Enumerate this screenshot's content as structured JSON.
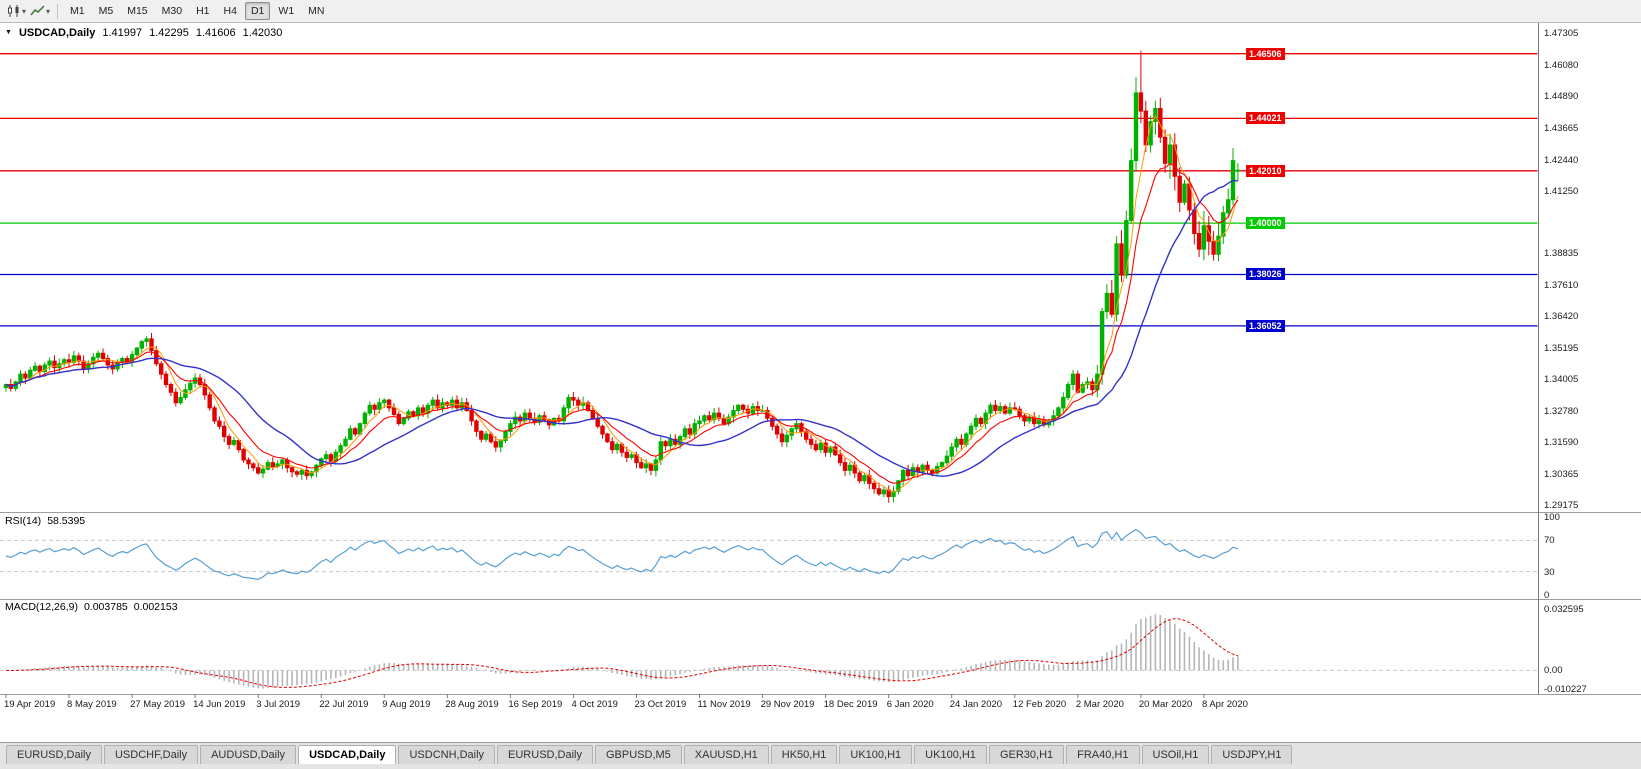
{
  "toolbar": {
    "timeframes": [
      {
        "label": "M1",
        "active": false
      },
      {
        "label": "M5",
        "active": false
      },
      {
        "label": "M15",
        "active": false
      },
      {
        "label": "M30",
        "active": false
      },
      {
        "label": "H1",
        "active": false
      },
      {
        "label": "H4",
        "active": false
      },
      {
        "label": "D1",
        "active": true
      },
      {
        "label": "W1",
        "active": false
      },
      {
        "label": "MN",
        "active": false
      }
    ]
  },
  "quote": {
    "arrow": "▼",
    "symbol": "USDCAD,Daily",
    "open": "1.41997",
    "high": "1.42295",
    "low": "1.41606",
    "close": "1.42030"
  },
  "rsi": {
    "title": "RSI(14)",
    "value": "58.5395",
    "color": "#569fd6",
    "levels": [
      70,
      30
    ],
    "axis": [
      {
        "text": "100",
        "value": 100
      },
      {
        "text": "70",
        "value": 70
      },
      {
        "text": "30",
        "value": 30
      },
      {
        "text": "0",
        "value": 0
      }
    ]
  },
  "macd": {
    "title": "MACD(12,26,9)",
    "main_value": "0.003785",
    "signal_value": "0.002153",
    "histogram_color": "#b6b6b6",
    "signal_color": "#e60000",
    "axis": [
      {
        "text": "0.032595",
        "value": 0.032595
      },
      {
        "text": "0.00",
        "value": 0
      },
      {
        "text": "-0.010227",
        "value": -0.010227
      }
    ]
  },
  "tabs": [
    {
      "label": "EURUSD,Daily",
      "active": false
    },
    {
      "label": "USDCHF,Daily",
      "active": false
    },
    {
      "label": "AUDUSD,Daily",
      "active": false
    },
    {
      "label": "USDCAD,Daily",
      "active": true
    },
    {
      "label": "USDCNH,Daily",
      "active": false
    },
    {
      "label": "EURUSD,Daily",
      "active": false
    },
    {
      "label": "GBPUSD,M5",
      "active": false
    },
    {
      "label": "XAUUSD,H1",
      "active": false
    },
    {
      "label": "HK50,H1",
      "active": false
    },
    {
      "label": "UK100,H1",
      "active": false
    },
    {
      "label": "UK100,H1",
      "active": false
    },
    {
      "label": "GER30,H1",
      "active": false
    },
    {
      "label": "FRA40,H1",
      "active": false
    },
    {
      "label": "USOil,H1",
      "active": false
    },
    {
      "label": "USDJPY,H1",
      "active": false
    }
  ],
  "chart_data": {
    "type": "candlestick",
    "title": "USDCAD,Daily",
    "price_range": [
      1.2898,
      1.4757
    ],
    "macd_range": [
      -0.0105,
      0.036
    ],
    "label_every_n_candles": 13,
    "price_axis_labels": [
      "1.47305",
      "1.46080",
      "1.44890",
      "1.43665",
      "1.42440",
      "1.41250",
      "1.38835",
      "1.37610",
      "1.36420",
      "1.35195",
      "1.34005",
      "1.32780",
      "1.31590",
      "1.30365",
      "1.29175"
    ],
    "date_labels": [
      "19 Apr 2019",
      "8 May 2019",
      "27 May 2019",
      "14 Jun 2019",
      "3 Jul 2019",
      "22 Jul 2019",
      "9 Aug 2019",
      "28 Aug 2019",
      "16 Sep 2019",
      "4 Oct 2019",
      "23 Oct 2019",
      "11 Nov 2019",
      "29 Nov 2019",
      "18 Dec 2019",
      "6 Jan 2020",
      "24 Jan 2020",
      "12 Feb 2020",
      "2 Mar 2020",
      "20 Mar 2020",
      "8 Apr 2020"
    ],
    "hlines": [
      {
        "price": 1.46506,
        "label": "1.46506",
        "color": "#ee0000"
      },
      {
        "price": 1.44021,
        "label": "1.44021",
        "color": "#ee0000"
      },
      {
        "price": 1.4201,
        "label": "1.42010",
        "color": "#ee0000"
      },
      {
        "price": 1.4,
        "label": "1.40000",
        "color": "#00cc00"
      },
      {
        "price": 1.38026,
        "label": "1.38026",
        "color": "#0000cd"
      },
      {
        "price": 1.36052,
        "label": "1.36052",
        "color": "#0000cd"
      }
    ],
    "colors": {
      "up": "#00b200",
      "down": "#e00000",
      "ma_fast": "#ff9900",
      "ma_mid": "#ff0000",
      "ma_slow": "#3333cc"
    },
    "closes": [
      1.338,
      1.3365,
      1.339,
      1.342,
      1.3405,
      1.3435,
      1.345,
      1.343,
      1.3455,
      1.347,
      1.3445,
      1.346,
      1.3475,
      1.3465,
      1.349,
      1.347,
      1.344,
      1.346,
      1.3485,
      1.35,
      1.348,
      1.3455,
      1.344,
      1.3465,
      1.348,
      1.347,
      1.3495,
      1.352,
      1.3545,
      1.3555,
      1.351,
      1.346,
      1.342,
      1.338,
      1.335,
      1.331,
      1.333,
      1.336,
      1.3385,
      1.3405,
      1.338,
      1.334,
      1.329,
      1.324,
      1.322,
      1.318,
      1.315,
      1.3165,
      1.313,
      1.309,
      1.3075,
      1.306,
      1.304,
      1.3055,
      1.308,
      1.3065,
      1.3075,
      1.309,
      1.306,
      1.3045,
      1.3035,
      1.305,
      1.303,
      1.3045,
      1.307,
      1.3095,
      1.311,
      1.3085,
      1.312,
      1.3145,
      1.317,
      1.321,
      1.319,
      1.323,
      1.327,
      1.33,
      1.3285,
      1.331,
      1.332,
      1.329,
      1.3265,
      1.323,
      1.325,
      1.3275,
      1.326,
      1.329,
      1.327,
      1.33,
      1.332,
      1.329,
      1.331,
      1.33,
      1.332,
      1.329,
      1.331,
      1.328,
      1.324,
      1.32,
      1.317,
      1.319,
      1.316,
      1.314,
      1.3165,
      1.32,
      1.323,
      1.3255,
      1.324,
      1.327,
      1.325,
      1.3235,
      1.326,
      1.3245,
      1.3225,
      1.325,
      1.324,
      1.329,
      1.333,
      1.332,
      1.33,
      1.331,
      1.328,
      1.325,
      1.322,
      1.319,
      1.316,
      1.313,
      1.315,
      1.312,
      1.31,
      1.311,
      1.308,
      1.306,
      1.3075,
      1.305,
      1.309,
      1.316,
      1.3145,
      1.317,
      1.315,
      1.318,
      1.321,
      1.319,
      1.323,
      1.324,
      1.326,
      1.3245,
      1.327,
      1.325,
      1.323,
      1.3255,
      1.328,
      1.33,
      1.3285,
      1.327,
      1.3295,
      1.328,
      1.328,
      1.325,
      1.322,
      1.319,
      1.316,
      1.3185,
      1.321,
      1.323,
      1.32,
      1.317,
      1.315,
      1.313,
      1.3155,
      1.312,
      1.314,
      1.311,
      1.308,
      1.305,
      1.307,
      1.304,
      1.301,
      1.303,
      1.3,
      1.298,
      1.296,
      1.2975,
      1.295,
      1.297,
      1.301,
      1.305,
      1.303,
      1.306,
      1.3045,
      1.307,
      1.305,
      1.304,
      1.3065,
      1.308,
      1.3105,
      1.314,
      1.317,
      1.315,
      1.319,
      1.322,
      1.325,
      1.323,
      1.327,
      1.33,
      1.328,
      1.3295,
      1.327,
      1.329,
      1.3285,
      1.326,
      1.324,
      1.3255,
      1.323,
      1.3245,
      1.3225,
      1.324,
      1.326,
      1.329,
      1.333,
      1.338,
      1.342,
      1.335,
      1.338,
      1.339,
      1.336,
      1.342,
      1.366,
      1.373,
      1.365,
      1.392,
      1.38,
      1.401,
      1.424,
      1.45,
      1.443,
      1.43,
      1.439,
      1.444,
      1.433,
      1.423,
      1.43,
      1.418,
      1.408,
      1.415,
      1.405,
      1.396,
      1.39,
      1.399,
      1.393,
      1.388,
      1.395,
      1.404,
      1.409,
      1.424,
      1.4203
    ],
    "wick_overrides": {
      "29": {
        "high": 1.3565
      },
      "182": {
        "low": 1.2926
      },
      "233": {
        "high": 1.456
      },
      "234": {
        "high": 1.4662
      },
      "249": {
        "low": 1.3856
      },
      "253": {
        "high": 1.4288
      }
    },
    "last_candle": {
      "open": 1.41997,
      "high": 1.42295,
      "low": 1.41606,
      "close": 1.4203
    }
  }
}
